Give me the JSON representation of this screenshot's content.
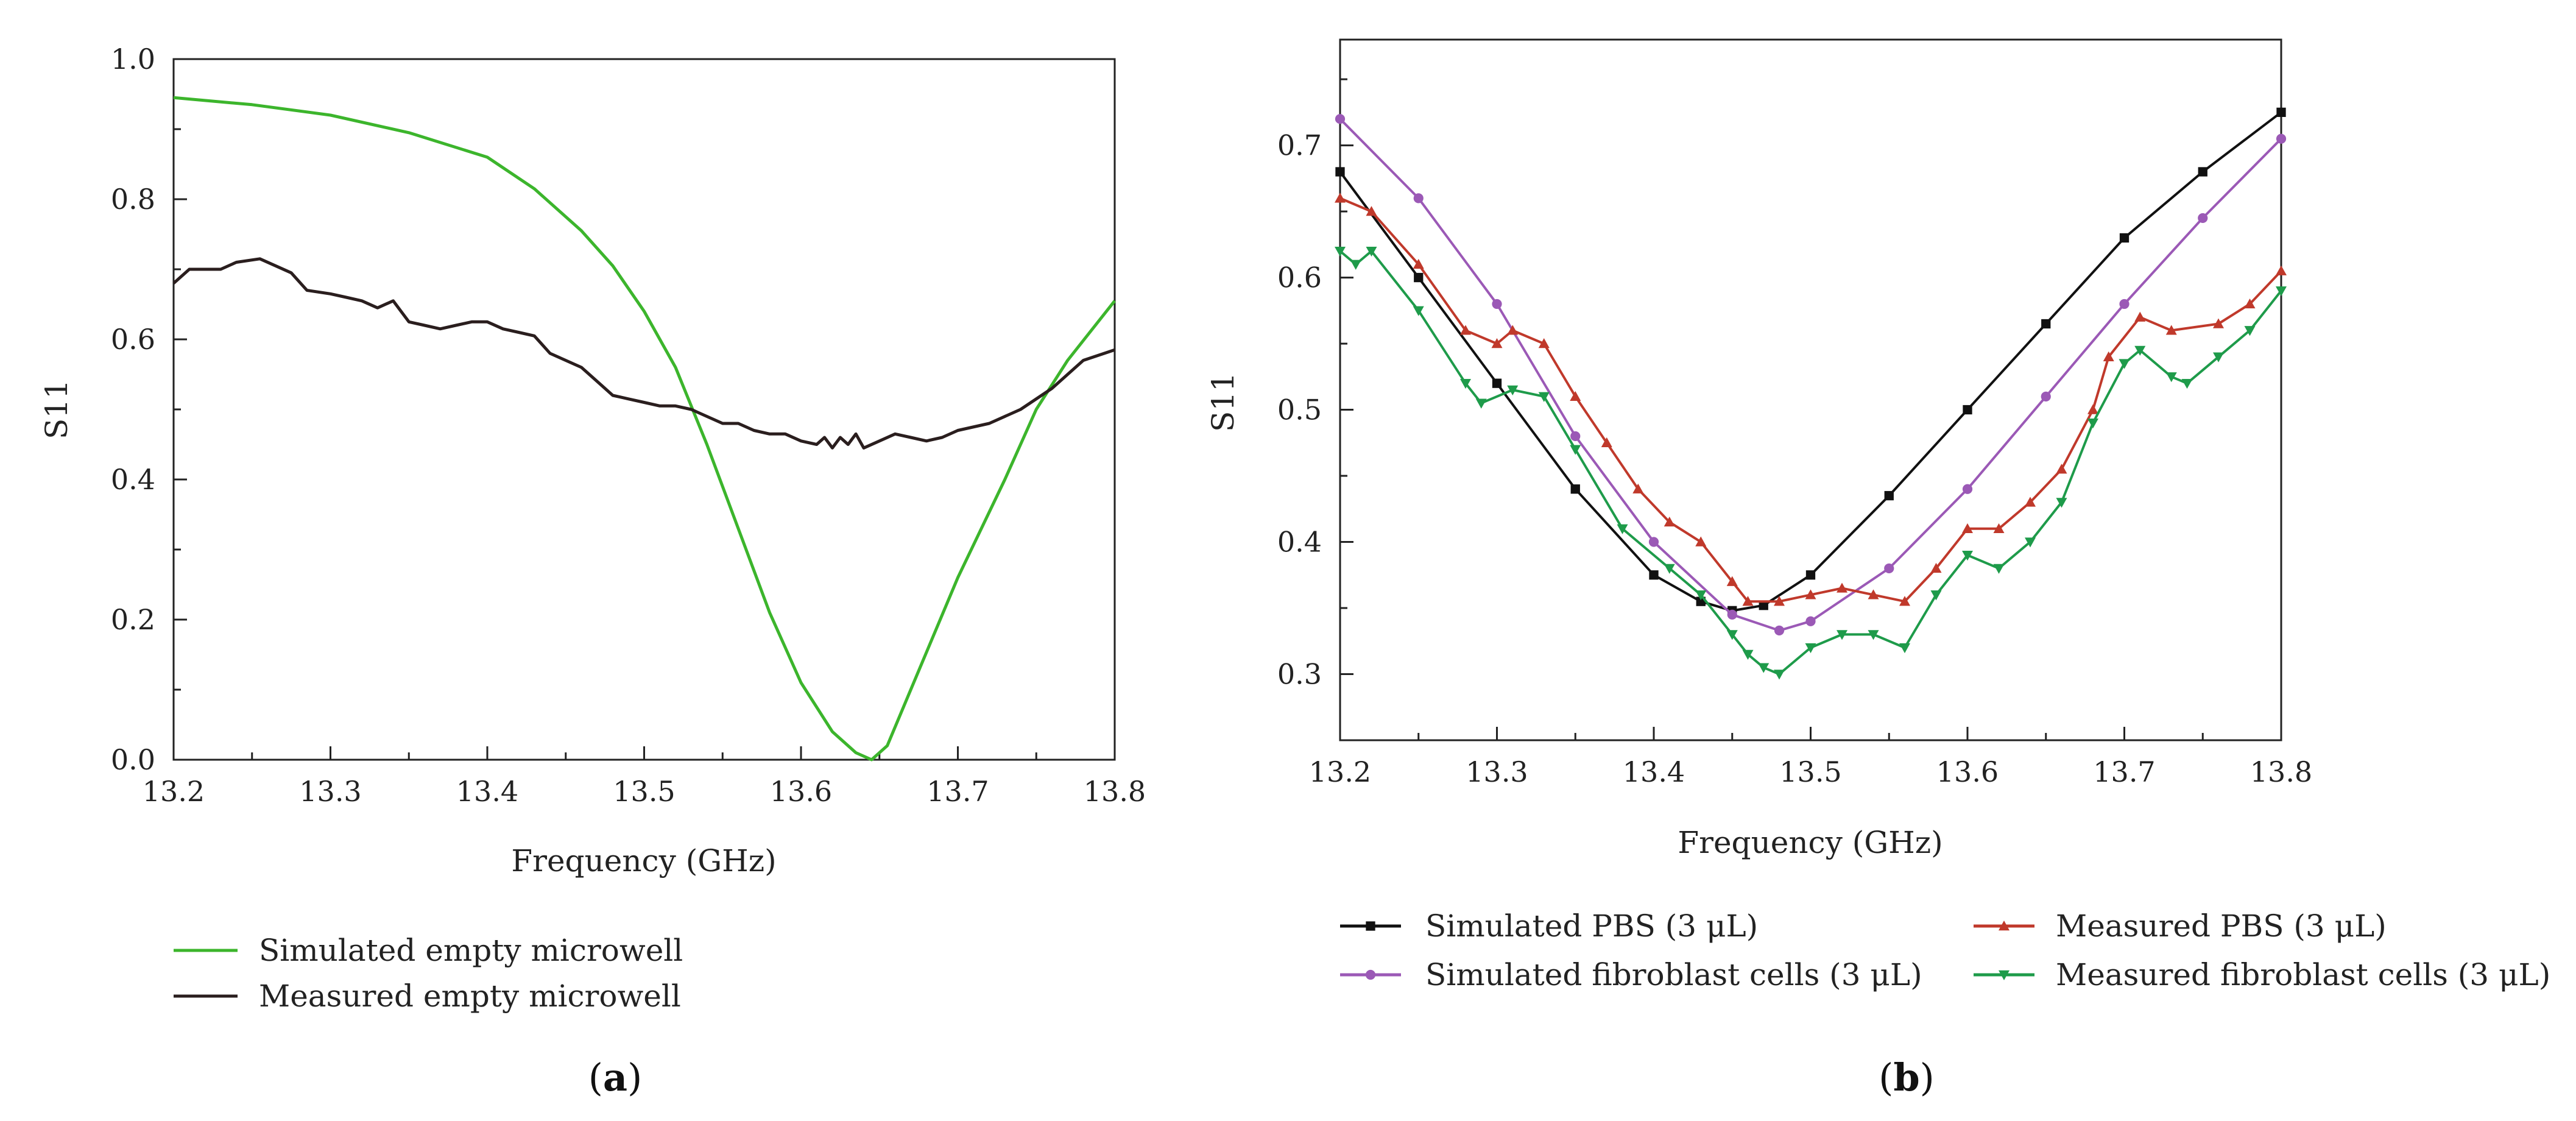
{
  "chart_data": [
    {
      "panel_label": "a",
      "type": "line",
      "title": "",
      "xlabel": "Frequency (GHz)",
      "ylabel": "S11",
      "xlim": [
        13.2,
        13.8
      ],
      "ylim": [
        0.0,
        1.0
      ],
      "xticks": [
        "13.2",
        "13.3",
        "13.4",
        "13.5",
        "13.6",
        "13.7",
        "13.8"
      ],
      "yticks": [
        "0.0",
        "0.2",
        "0.4",
        "0.6",
        "0.8",
        "1.0"
      ],
      "grid": false,
      "legend_position": "bottom",
      "series": [
        {
          "name": "Simulated empty microwell",
          "color": "#3cb52c",
          "marker": "none",
          "x": [
            13.2,
            13.25,
            13.3,
            13.35,
            13.4,
            13.43,
            13.46,
            13.48,
            13.5,
            13.52,
            13.54,
            13.56,
            13.58,
            13.6,
            13.62,
            13.635,
            13.645,
            13.655,
            13.67,
            13.7,
            13.73,
            13.75,
            13.77,
            13.8
          ],
          "y": [
            0.945,
            0.935,
            0.92,
            0.895,
            0.86,
            0.815,
            0.755,
            0.705,
            0.64,
            0.56,
            0.45,
            0.33,
            0.21,
            0.11,
            0.04,
            0.01,
            0.0,
            0.02,
            0.1,
            0.26,
            0.4,
            0.5,
            0.57,
            0.655
          ]
        },
        {
          "name": "Measured empty microwell",
          "color": "#2a1e1e",
          "marker": "none",
          "x": [
            13.2,
            13.21,
            13.22,
            13.23,
            13.24,
            13.255,
            13.265,
            13.275,
            13.285,
            13.3,
            13.31,
            13.32,
            13.33,
            13.34,
            13.35,
            13.36,
            13.37,
            13.38,
            13.39,
            13.4,
            13.41,
            13.42,
            13.43,
            13.44,
            13.45,
            13.46,
            13.47,
            13.48,
            13.49,
            13.5,
            13.51,
            13.52,
            13.53,
            13.54,
            13.55,
            13.56,
            13.57,
            13.58,
            13.59,
            13.6,
            13.61,
            13.615,
            13.62,
            13.625,
            13.63,
            13.635,
            13.64,
            13.65,
            13.66,
            13.67,
            13.68,
            13.69,
            13.7,
            13.72,
            13.74,
            13.76,
            13.78,
            13.8
          ],
          "y": [
            0.68,
            0.7,
            0.7,
            0.7,
            0.71,
            0.715,
            0.705,
            0.695,
            0.67,
            0.665,
            0.66,
            0.655,
            0.645,
            0.655,
            0.625,
            0.62,
            0.615,
            0.62,
            0.625,
            0.625,
            0.615,
            0.61,
            0.605,
            0.58,
            0.57,
            0.56,
            0.54,
            0.52,
            0.515,
            0.51,
            0.505,
            0.505,
            0.5,
            0.49,
            0.48,
            0.48,
            0.47,
            0.465,
            0.465,
            0.455,
            0.45,
            0.46,
            0.445,
            0.46,
            0.45,
            0.465,
            0.445,
            0.455,
            0.465,
            0.46,
            0.455,
            0.46,
            0.47,
            0.48,
            0.5,
            0.53,
            0.57,
            0.585
          ]
        }
      ]
    },
    {
      "panel_label": "b",
      "type": "line",
      "title": "",
      "xlabel": "Frequency (GHz)",
      "ylabel": "S11",
      "xlim": [
        13.2,
        13.8
      ],
      "ylim": [
        0.25,
        0.78
      ],
      "xticks": [
        "13.2",
        "13.3",
        "13.4",
        "13.5",
        "13.6",
        "13.7",
        "13.8"
      ],
      "yticks": [
        "0.3",
        "0.4",
        "0.5",
        "0.6",
        "0.7"
      ],
      "grid": false,
      "legend_position": "bottom",
      "series": [
        {
          "name": "Simulated PBS (3 μL)",
          "color": "#111111",
          "marker": "square",
          "x": [
            13.2,
            13.25,
            13.3,
            13.35,
            13.4,
            13.43,
            13.45,
            13.47,
            13.5,
            13.55,
            13.6,
            13.65,
            13.7,
            13.75,
            13.8
          ],
          "y": [
            0.68,
            0.6,
            0.52,
            0.44,
            0.375,
            0.355,
            0.348,
            0.352,
            0.375,
            0.435,
            0.5,
            0.565,
            0.63,
            0.68,
            0.725
          ]
        },
        {
          "name": "Simulated fibroblast cells (3 μL)",
          "color": "#9b59b6",
          "marker": "circle",
          "x": [
            13.2,
            13.25,
            13.3,
            13.35,
            13.4,
            13.45,
            13.48,
            13.5,
            13.55,
            13.6,
            13.65,
            13.7,
            13.75,
            13.8
          ],
          "y": [
            0.72,
            0.66,
            0.58,
            0.48,
            0.4,
            0.345,
            0.333,
            0.34,
            0.38,
            0.44,
            0.51,
            0.58,
            0.645,
            0.705
          ]
        },
        {
          "name": "Measured PBS (3 μL)",
          "color": "#c0392b",
          "marker": "triangle-up",
          "x": [
            13.2,
            13.22,
            13.25,
            13.28,
            13.3,
            13.31,
            13.33,
            13.35,
            13.37,
            13.39,
            13.41,
            13.43,
            13.45,
            13.46,
            13.48,
            13.5,
            13.52,
            13.54,
            13.56,
            13.58,
            13.6,
            13.62,
            13.64,
            13.66,
            13.68,
            13.69,
            13.71,
            13.73,
            13.76,
            13.78,
            13.8
          ],
          "y": [
            0.66,
            0.65,
            0.61,
            0.56,
            0.55,
            0.56,
            0.55,
            0.51,
            0.475,
            0.44,
            0.415,
            0.4,
            0.37,
            0.355,
            0.355,
            0.36,
            0.365,
            0.36,
            0.355,
            0.38,
            0.41,
            0.41,
            0.43,
            0.455,
            0.5,
            0.54,
            0.57,
            0.56,
            0.565,
            0.58,
            0.605
          ]
        },
        {
          "name": "Measured fibroblast cells (3 μL)",
          "color": "#1e9b4a",
          "marker": "triangle-down",
          "x": [
            13.2,
            13.21,
            13.22,
            13.25,
            13.28,
            13.29,
            13.31,
            13.33,
            13.35,
            13.38,
            13.41,
            13.43,
            13.45,
            13.46,
            13.47,
            13.48,
            13.5,
            13.52,
            13.54,
            13.56,
            13.58,
            13.6,
            13.62,
            13.64,
            13.66,
            13.68,
            13.7,
            13.71,
            13.73,
            13.74,
            13.76,
            13.78,
            13.8
          ],
          "y": [
            0.62,
            0.61,
            0.62,
            0.575,
            0.52,
            0.505,
            0.515,
            0.51,
            0.47,
            0.41,
            0.38,
            0.36,
            0.33,
            0.315,
            0.305,
            0.3,
            0.32,
            0.33,
            0.33,
            0.32,
            0.36,
            0.39,
            0.38,
            0.4,
            0.43,
            0.49,
            0.535,
            0.545,
            0.525,
            0.52,
            0.54,
            0.56,
            0.59
          ]
        }
      ]
    }
  ]
}
